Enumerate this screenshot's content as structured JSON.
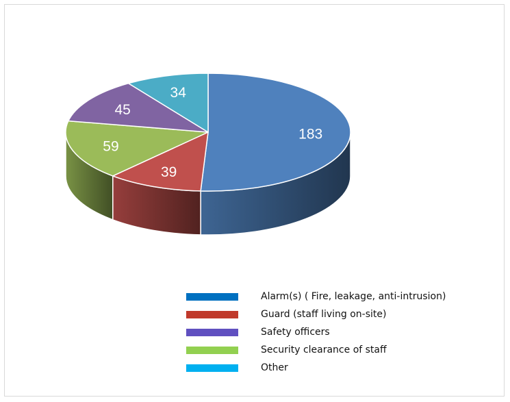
{
  "chart_data": {
    "type": "pie",
    "title": "",
    "categories": [
      "Alarm(s) ( Fire, leakage, anti-intrusion)",
      "Guard (staff living on-site)",
      "Safety officers",
      "Security clearance of staff",
      "Other"
    ],
    "values": [
      183,
      39,
      45,
      59,
      34
    ],
    "slices": [
      {
        "label": "Alarm(s) ( Fire, leakage, anti-intrusion)",
        "value": 183,
        "value_text": "183",
        "color": "#4f81bd",
        "legend_color": "#0070c0"
      },
      {
        "label": "Guard (staff living on-site)",
        "value": 39,
        "value_text": "39",
        "color": "#c0504d",
        "legend_color": "#c0392b"
      },
      {
        "label": "Security clearance of staff",
        "value": 59,
        "value_text": "59",
        "color": "#9bbb59",
        "legend_color": "#92d050"
      },
      {
        "label": "Safety officers",
        "value": 45,
        "value_text": "45",
        "color": "#8064a2",
        "legend_color": "#6050c0"
      },
      {
        "label": "Other",
        "value": 34,
        "value_text": "34",
        "color": "#4bacc6",
        "legend_color": "#00b0f0"
      }
    ],
    "legend": {
      "position": "bottom",
      "entries": [
        {
          "label": "Alarm(s) ( Fire, leakage, anti-intrusion)",
          "color": "#0070c0"
        },
        {
          "label": "Guard (staff living on-site)",
          "color": "#c0392b"
        },
        {
          "label": "Safety officers",
          "color": "#6050c0"
        },
        {
          "label": "Security clearance of staff",
          "color": "#92d050"
        },
        {
          "label": "Other",
          "color": "#00b0f0"
        }
      ]
    },
    "style": "3d-pie"
  }
}
